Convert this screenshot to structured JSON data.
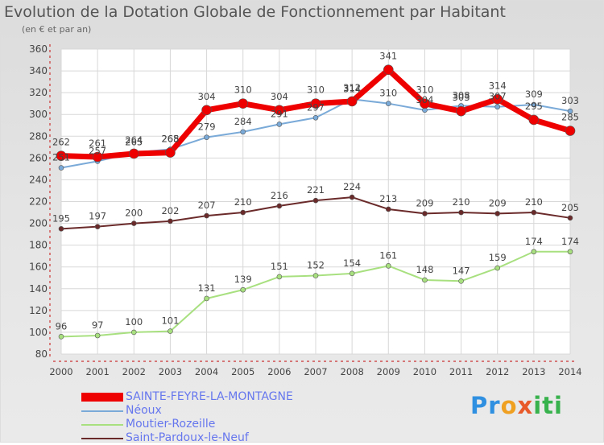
{
  "chart_data": {
    "type": "line",
    "title": "Evolution de la Dotation Globale de Fonctionnement par Habitant",
    "subtitle": "(en € et par an)",
    "xlabel": "",
    "ylabel": "",
    "categories": [
      "2000",
      "2001",
      "2002",
      "2003",
      "2004",
      "2005",
      "2006",
      "2007",
      "2008",
      "2009",
      "2010",
      "2011",
      "2012",
      "2013",
      "2014"
    ],
    "yticks": [
      "80",
      "100",
      "120",
      "140",
      "160",
      "180",
      "200",
      "220",
      "240",
      "260",
      "280",
      "300",
      "320",
      "340",
      "360"
    ],
    "ylim": [
      80,
      360
    ],
    "grid": true,
    "legend_position": "bottom-left",
    "series": [
      {
        "name": "Saint-Pardoux-le-Neuf",
        "color": "#6b2a2a",
        "values": [
          195,
          197,
          200,
          202,
          207,
          210,
          216,
          221,
          224,
          213,
          209,
          210,
          209,
          210,
          205
        ]
      },
      {
        "name": "Moutier-Rozeille",
        "color": "#a8e080",
        "values": [
          96,
          97,
          100,
          101,
          131,
          139,
          151,
          152,
          154,
          161,
          148,
          147,
          159,
          174,
          174
        ]
      },
      {
        "name": "Néoux",
        "color": "#7aaad8",
        "values": [
          251,
          257,
          265,
          268,
          279,
          284,
          291,
          297,
          314,
          310,
          304,
          308,
          307,
          309,
          303
        ]
      },
      {
        "name": "SAINTE-FEYRE-LA-MONTAGNE",
        "color": "#ee0000",
        "values": [
          262,
          261,
          264,
          265,
          304,
          310,
          304,
          310,
          312,
          341,
          310,
          303,
          314,
          295,
          285
        ]
      }
    ],
    "legend": [
      "SAINTE-FEYRE-LA-MONTAGNE",
      "Néoux",
      "Moutier-Rozeille",
      "Saint-Pardoux-le-Neuf"
    ]
  },
  "brand": {
    "parts": [
      "Pr",
      "o",
      "x",
      "iti"
    ]
  }
}
